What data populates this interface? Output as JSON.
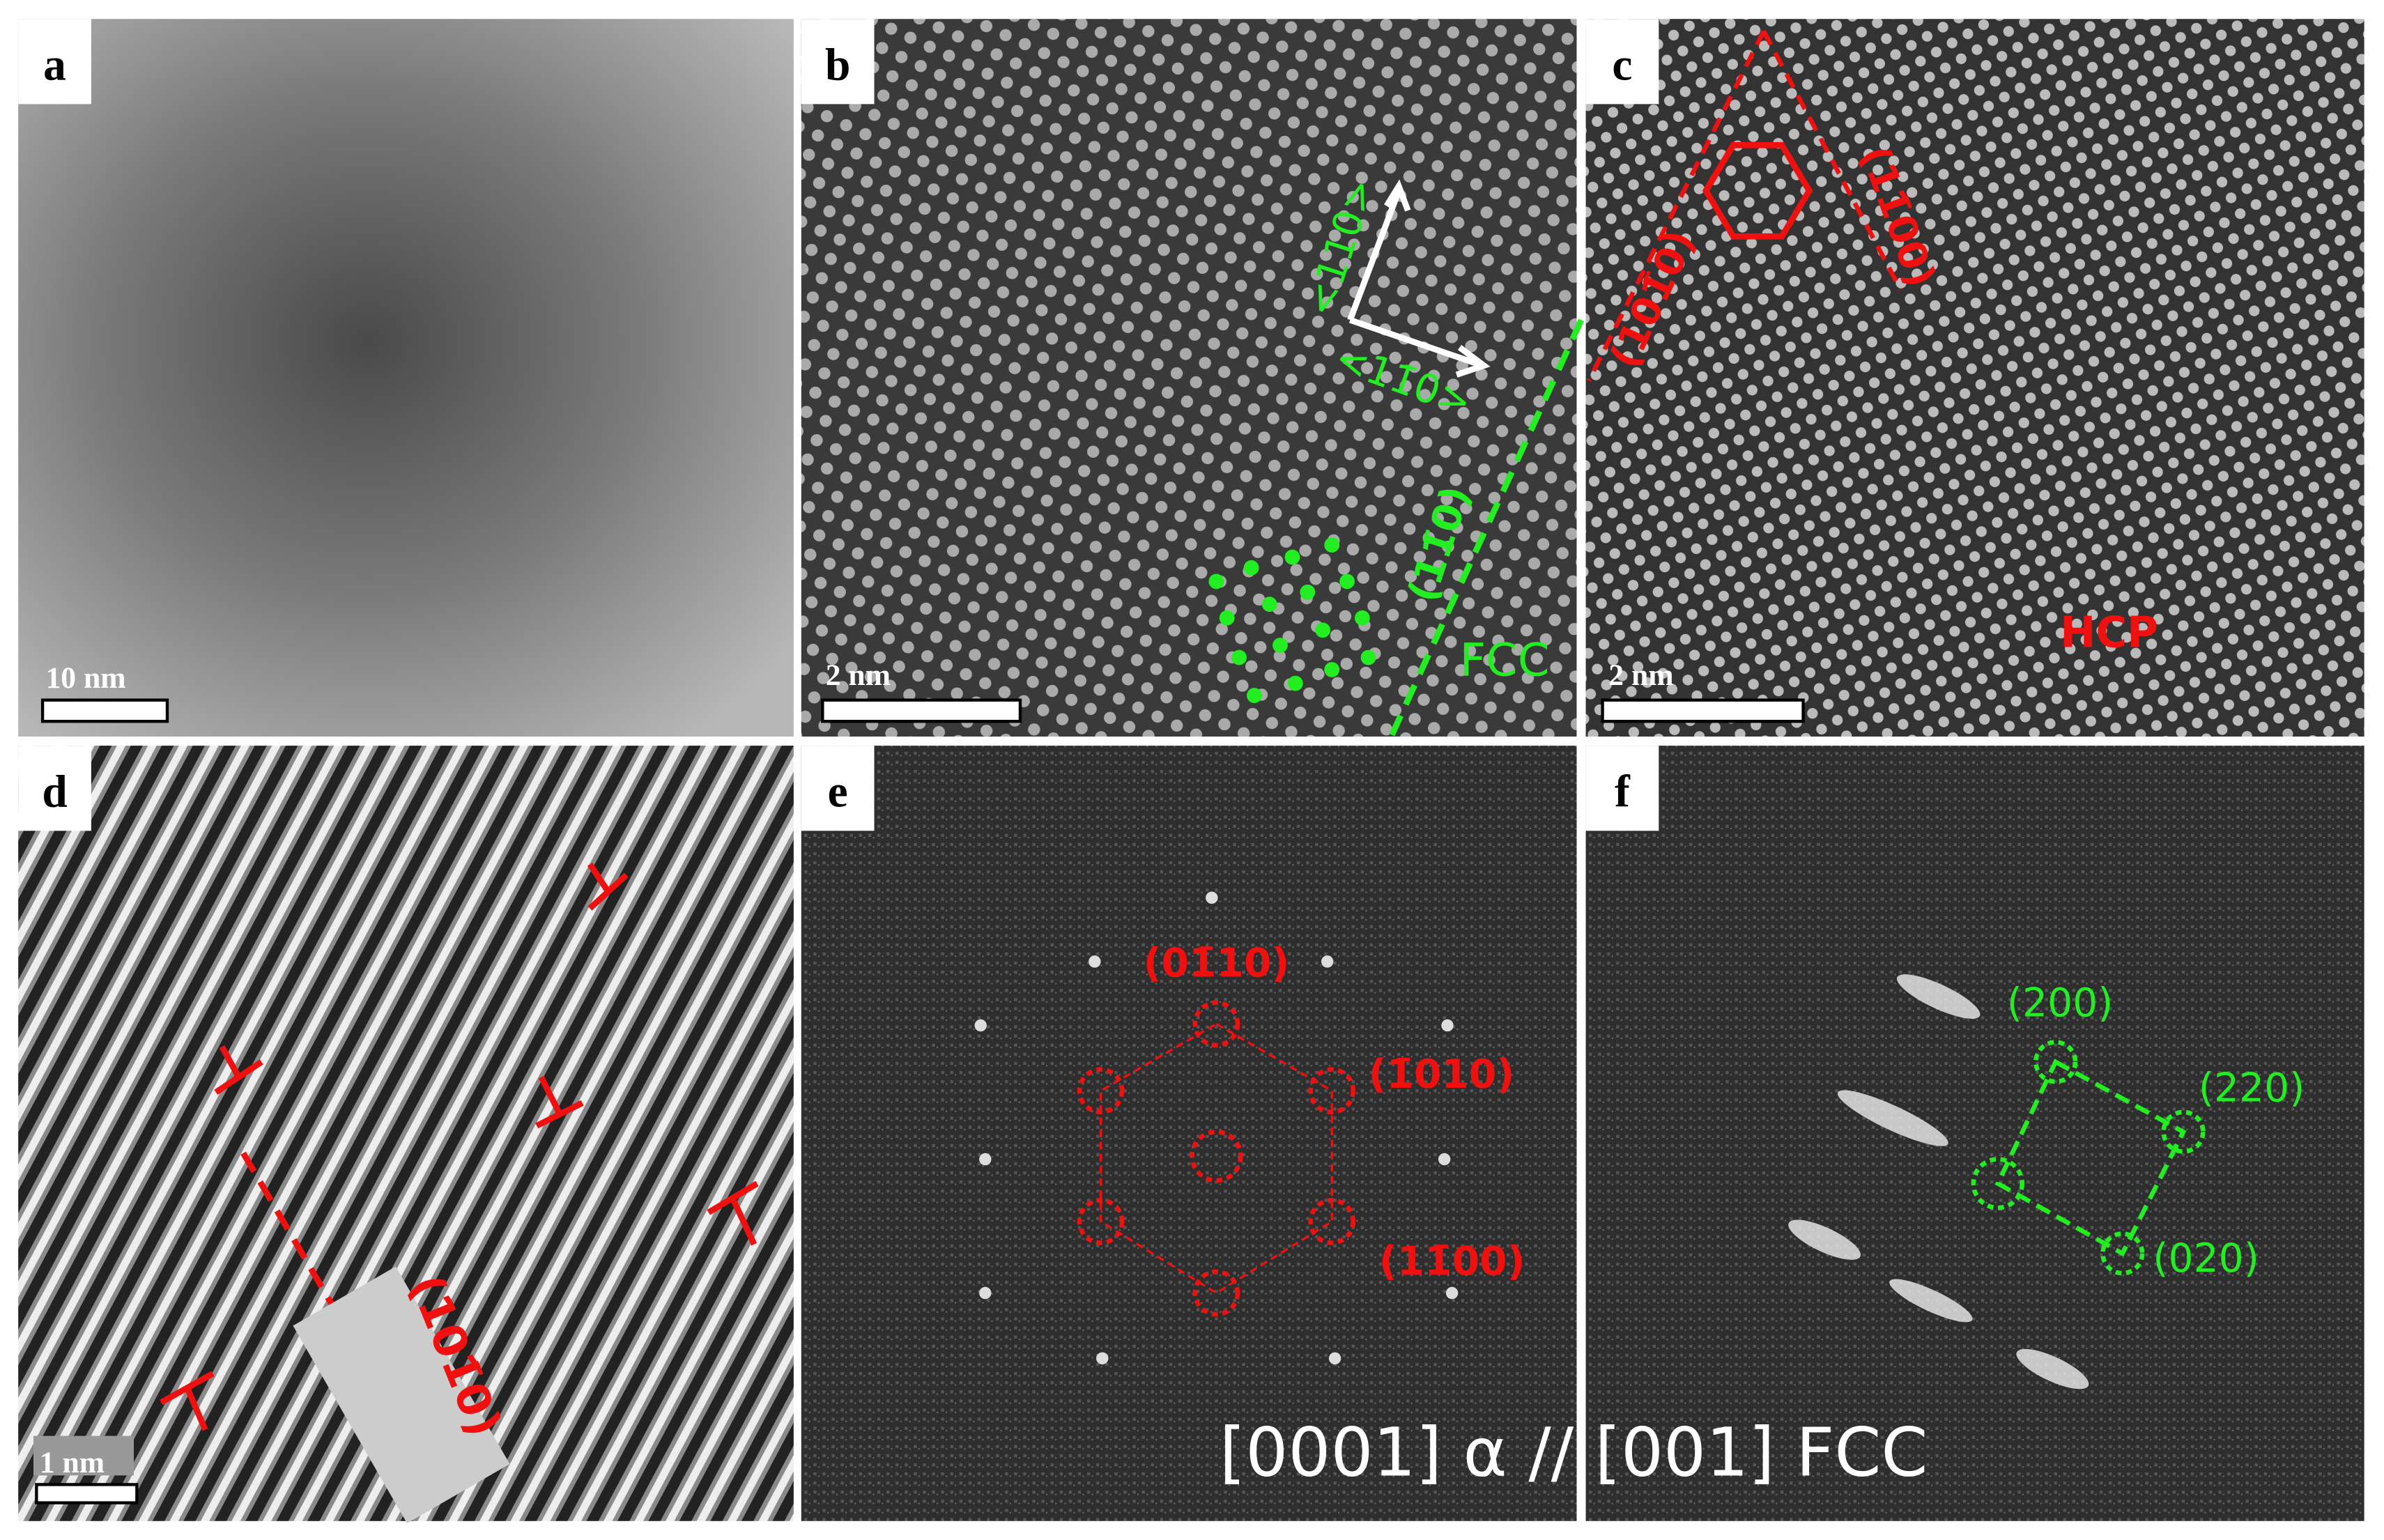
{
  "panels": [
    {
      "label": "a",
      "scale_bar": "10 nm"
    },
    {
      "label": "b",
      "scale_bar": "2 nm",
      "annotations": [
        "<110>",
        "<11̄0>",
        "(11̄0)",
        "FCC"
      ]
    },
    {
      "label": "c",
      "scale_bar": "2 nm",
      "annotations": [
        "(101̄0)",
        "(11̄00)",
        "HCP"
      ]
    },
    {
      "label": "d",
      "scale_bar": "1 nm",
      "annotations": [
        "(101̄0)"
      ]
    },
    {
      "label": "e",
      "annotations": [
        "(01̄10)",
        "(1̄010)",
        "(11̄00)"
      ]
    },
    {
      "label": "f",
      "annotations": [
        "(200)",
        "(220)",
        "(020)"
      ]
    }
  ],
  "caption": "[0001] α // [001] FCC"
}
